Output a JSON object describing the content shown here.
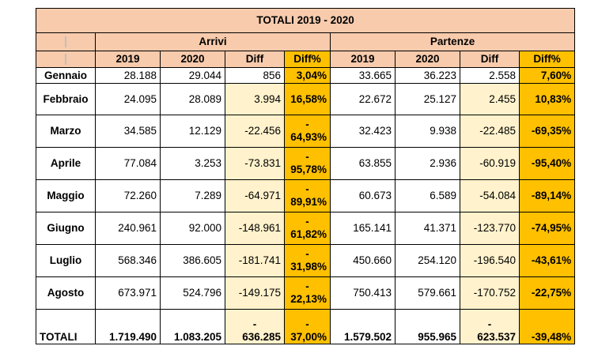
{
  "title": "TOTALI 2019 - 2020",
  "groups": {
    "arrivi": "Arrivi",
    "partenze": "Partenze"
  },
  "columns": [
    "2019",
    "2020",
    "Diff",
    "Diff%",
    "2019",
    "2020",
    "Diff",
    "Diff%"
  ],
  "rows": [
    {
      "month": "Gennaio",
      "a2019": "28.188",
      "a2020": "29.044",
      "adiff": "856",
      "apct": "3,04%",
      "p2019": "33.665",
      "p2020": "36.223",
      "pdiff": "2.558",
      "ppct": "7,60%"
    },
    {
      "month": "Febbraio",
      "a2019": "24.095",
      "a2020": "28.089",
      "adiff": "3.994",
      "apct": "16,58%",
      "p2019": "22.672",
      "p2020": "25.127",
      "pdiff": "2.455",
      "ppct": "10,83%"
    },
    {
      "month": "Marzo",
      "a2019": "34.585",
      "a2020": "12.129",
      "adiff": "-22.456",
      "apct": "64,93%",
      "p2019": "32.423",
      "p2020": "9.938",
      "pdiff": "-22.485",
      "ppct": "-69,35%"
    },
    {
      "month": "Aprile",
      "a2019": "77.084",
      "a2020": "3.253",
      "adiff": "-73.831",
      "apct": "95,78%",
      "p2019": "63.855",
      "p2020": "2.936",
      "pdiff": "-60.919",
      "ppct": "-95,40%"
    },
    {
      "month": "Maggio",
      "a2019": "72.260",
      "a2020": "7.289",
      "adiff": "-64.971",
      "apct": "89,91%",
      "p2019": "60.673",
      "p2020": "6.589",
      "pdiff": "-54.084",
      "ppct": "-89,14%"
    },
    {
      "month": "Giugno",
      "a2019": "240.961",
      "a2020": "92.000",
      "adiff": "-148.961",
      "apct": "61,82%",
      "p2019": "165.141",
      "p2020": "41.371",
      "pdiff": "-123.770",
      "ppct": "-74,95%"
    },
    {
      "month": "Luglio",
      "a2019": "568.346",
      "a2020": "386.605",
      "adiff": "-181.741",
      "apct": "31,98%",
      "p2019": "450.660",
      "p2020": "254.120",
      "pdiff": "-196.540",
      "ppct": "-43,61%"
    },
    {
      "month": "Agosto",
      "a2019": "673.971",
      "a2020": "524.796",
      "adiff": "-149.175",
      "apct": "22,13%",
      "p2019": "750.413",
      "p2020": "579.661",
      "pdiff": "-170.752",
      "ppct": "-22,75%"
    }
  ],
  "totals": {
    "label": "TOTALI",
    "a2019": "1.719.490",
    "a2020": "1.083.205",
    "adiff": "636.285",
    "apct": "37,00%",
    "p2019": "1.579.502",
    "p2020": "955.965",
    "pdiff": "623.537",
    "ppct": "-39,48%"
  },
  "colors": {
    "header": "#f8cbad",
    "diff": "#fff2cc",
    "pct": "#ffc000"
  }
}
